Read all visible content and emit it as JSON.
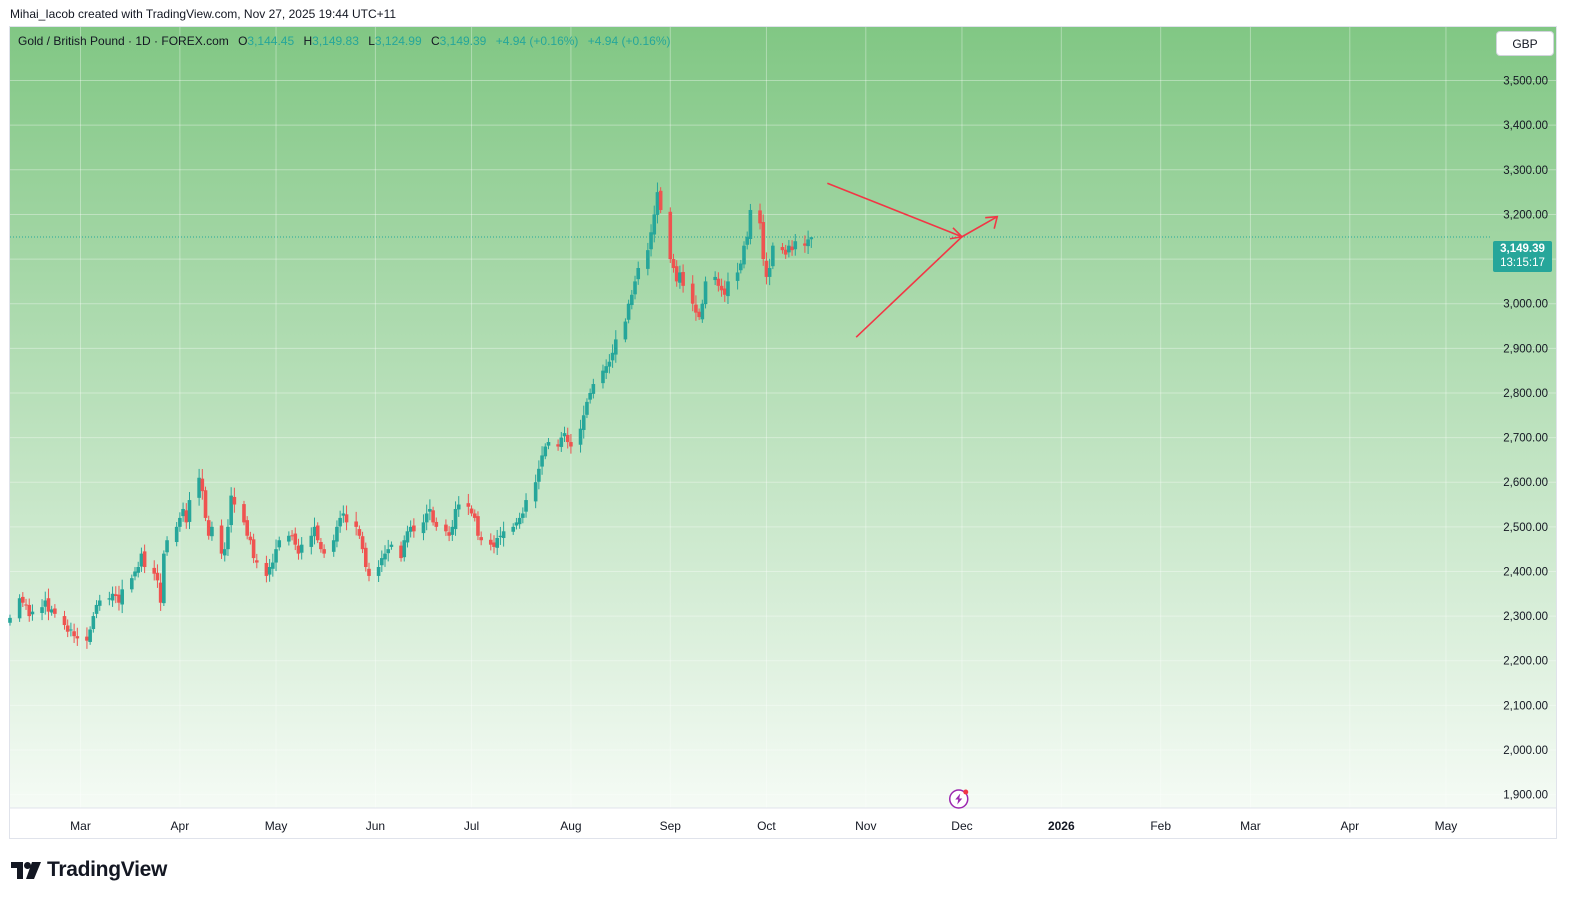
{
  "header": {
    "credit": "Mihai_Iacob created with TradingView.com, Nov 27, 2025 19:44 UTC+11"
  },
  "symbol": {
    "name": "Gold / British Pound · 1D · FOREX.com",
    "o_label": "O",
    "o_value": "3,144.45",
    "h_label": "H",
    "h_value": "3,149.83",
    "l_label": "L",
    "l_value": "3,124.99",
    "c_label": "C",
    "c_value": "3,149.39",
    "change": "+4.94 (+0.16%)",
    "change2": "+4.94 (+0.16%)"
  },
  "currency_button": "GBP",
  "last_price": {
    "price": "3,149.39",
    "countdown": "13:15:17"
  },
  "footer": {
    "brand": "TradingView"
  },
  "colors": {
    "up": "#26a69a",
    "down": "#ef5350",
    "drawing": "#f23645",
    "gradient_top": "#81c784",
    "gradient_bottom": "#f5fbf5"
  },
  "icons": {
    "event_marker": "lightning-icon",
    "logo": "tradingview-logo-icon"
  },
  "chart_data": {
    "type": "candlestick",
    "title": "Gold / British Pound · 1D · FOREX.com",
    "currency": "GBP",
    "ylim": [
      1870,
      3620
    ],
    "y_ticks": [
      1900,
      2000,
      2100,
      2200,
      2300,
      2400,
      2500,
      2600,
      2700,
      2800,
      2900,
      3000,
      3100,
      3200,
      3300,
      3400,
      3500
    ],
    "y_tick_labels": [
      "1,900.00",
      "2,000.00",
      "2,100.00",
      "2,200.00",
      "2,300.00",
      "2,400.00",
      "2,500.00",
      "2,600.00",
      "2,700.00",
      "2,800.00",
      "2,900.00",
      "3,000.00",
      "3,100.00",
      "3,200.00",
      "3,300.00",
      "3,400.00",
      "3,500.00"
    ],
    "x_range": [
      "2025-02-07",
      "2026-05-11"
    ],
    "x_ticks": [
      {
        "label": "Mar",
        "date": "2025-03-01"
      },
      {
        "label": "Apr",
        "date": "2025-04-01"
      },
      {
        "label": "May",
        "date": "2025-05-01"
      },
      {
        "label": "Jun",
        "date": "2025-06-01"
      },
      {
        "label": "Jul",
        "date": "2025-07-01"
      },
      {
        "label": "Aug",
        "date": "2025-08-01"
      },
      {
        "label": "Sep",
        "date": "2025-09-01"
      },
      {
        "label": "Oct",
        "date": "2025-10-01"
      },
      {
        "label": "Nov",
        "date": "2025-11-01"
      },
      {
        "label": "Dec",
        "date": "2025-12-01"
      },
      {
        "label": "2026",
        "date": "2026-01-01",
        "bold": true
      },
      {
        "label": "Feb",
        "date": "2026-02-01"
      },
      {
        "label": "Mar",
        "date": "2026-03-01"
      },
      {
        "label": "Apr",
        "date": "2026-04-01"
      },
      {
        "label": "May",
        "date": "2026-05-01"
      }
    ],
    "first_date": "2025-02-07",
    "closes": [
      2296,
      2340,
      2330,
      2325,
      2300,
      2310,
      2320,
      2335,
      2310,
      2315,
      2305,
      2280,
      2265,
      2270,
      2255,
      2250,
      2245,
      2270,
      2300,
      2325,
      2335,
      2340,
      2350,
      2345,
      2330,
      2360,
      2385,
      2400,
      2410,
      2440,
      2410,
      2395,
      2380,
      2330,
      2440,
      2470,
      2500,
      2520,
      2540,
      2510,
      2560,
      2610,
      2580,
      2520,
      2480,
      2500,
      2440,
      2450,
      2500,
      2570,
      2550,
      2510,
      2480,
      2470,
      2430,
      2420,
      2390,
      2410,
      2420,
      2450,
      2470,
      2480,
      2480,
      2460,
      2440,
      2460,
      2480,
      2500,
      2470,
      2450,
      2440,
      2470,
      2500,
      2520,
      2530,
      2510,
      2500,
      2480,
      2450,
      2410,
      2390,
      2410,
      2430,
      2440,
      2450,
      2460,
      2430,
      2470,
      2490,
      2500,
      2490,
      2510,
      2530,
      2540,
      2510,
      2500,
      2490,
      2480,
      2500,
      2540,
      2550,
      2545,
      2530,
      2520,
      2480,
      2470,
      2460,
      2455,
      2475,
      2480,
      2490,
      2500,
      2510,
      2520,
      2530,
      2560,
      2600,
      2630,
      2660,
      2680,
      2690,
      2680,
      2700,
      2710,
      2690,
      2680,
      2720,
      2750,
      2780,
      2800,
      2820,
      2850,
      2860,
      2870,
      2890,
      2920,
      2960,
      3000,
      3020,
      3050,
      3080,
      3120,
      3160,
      3200,
      3250,
      3210,
      3100,
      3080,
      3050,
      3070,
      3040,
      3000,
      2980,
      2970,
      3000,
      3050,
      3060,
      3040,
      3030,
      3020,
      3050,
      3070,
      3090,
      3130,
      3150,
      3210,
      3180,
      3100,
      3060,
      3080,
      3130,
      3120,
      3110,
      3130,
      3120,
      3140,
      3130,
      3144,
      3149
    ],
    "last": {
      "open": 3144.45,
      "high": 3149.83,
      "low": 3124.99,
      "close": 3149.39,
      "change": 4.94,
      "change_pct": 0.16
    },
    "drawings": {
      "upper_line": [
        {
          "date": "2025-10-20",
          "price": 3270
        },
        {
          "date": "2025-12-01",
          "price": 3150
        }
      ],
      "lower_line": [
        {
          "date": "2025-10-29",
          "price": 2925
        },
        {
          "date": "2025-12-01",
          "price": 3150
        }
      ],
      "arrow_head": {
        "date": "2025-12-01",
        "price": 3150
      },
      "breakout_arrow": [
        {
          "date": "2025-12-01",
          "price": 3150
        },
        {
          "date": "2025-12-12",
          "price": 3195
        }
      ]
    },
    "last_price_line": 3149.39,
    "event_marker_date": "2025-11-30",
    "grid": true
  }
}
